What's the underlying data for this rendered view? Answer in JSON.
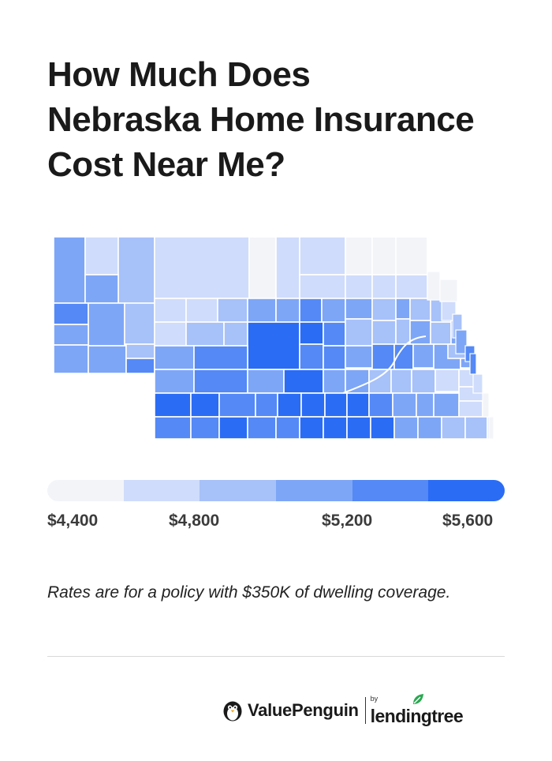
{
  "title_lines": [
    "How Much Does",
    "Nebraska Home Insurance",
    "Cost Near Me?"
  ],
  "map": {
    "region": "Nebraska",
    "levels": [
      0,
      1,
      2,
      3,
      4,
      5
    ],
    "scale_colors": [
      "#f2f4f8",
      "#cfdcfb",
      "#a7c1f9",
      "#7ea6f7",
      "#5489f6",
      "#2b6cf5"
    ]
  },
  "legend": {
    "labels": [
      "$4,400",
      "$4,800",
      "$5,200",
      "$5,600"
    ]
  },
  "note": "Rates are for a policy with $350K of dwelling coverage.",
  "footer": {
    "brand": "ValuePenguin",
    "by": "by",
    "partner": "lendingtree",
    "brand_icon": "penguin-icon",
    "partner_icon": "leaf-icon",
    "partner_color": "#29a851"
  }
}
